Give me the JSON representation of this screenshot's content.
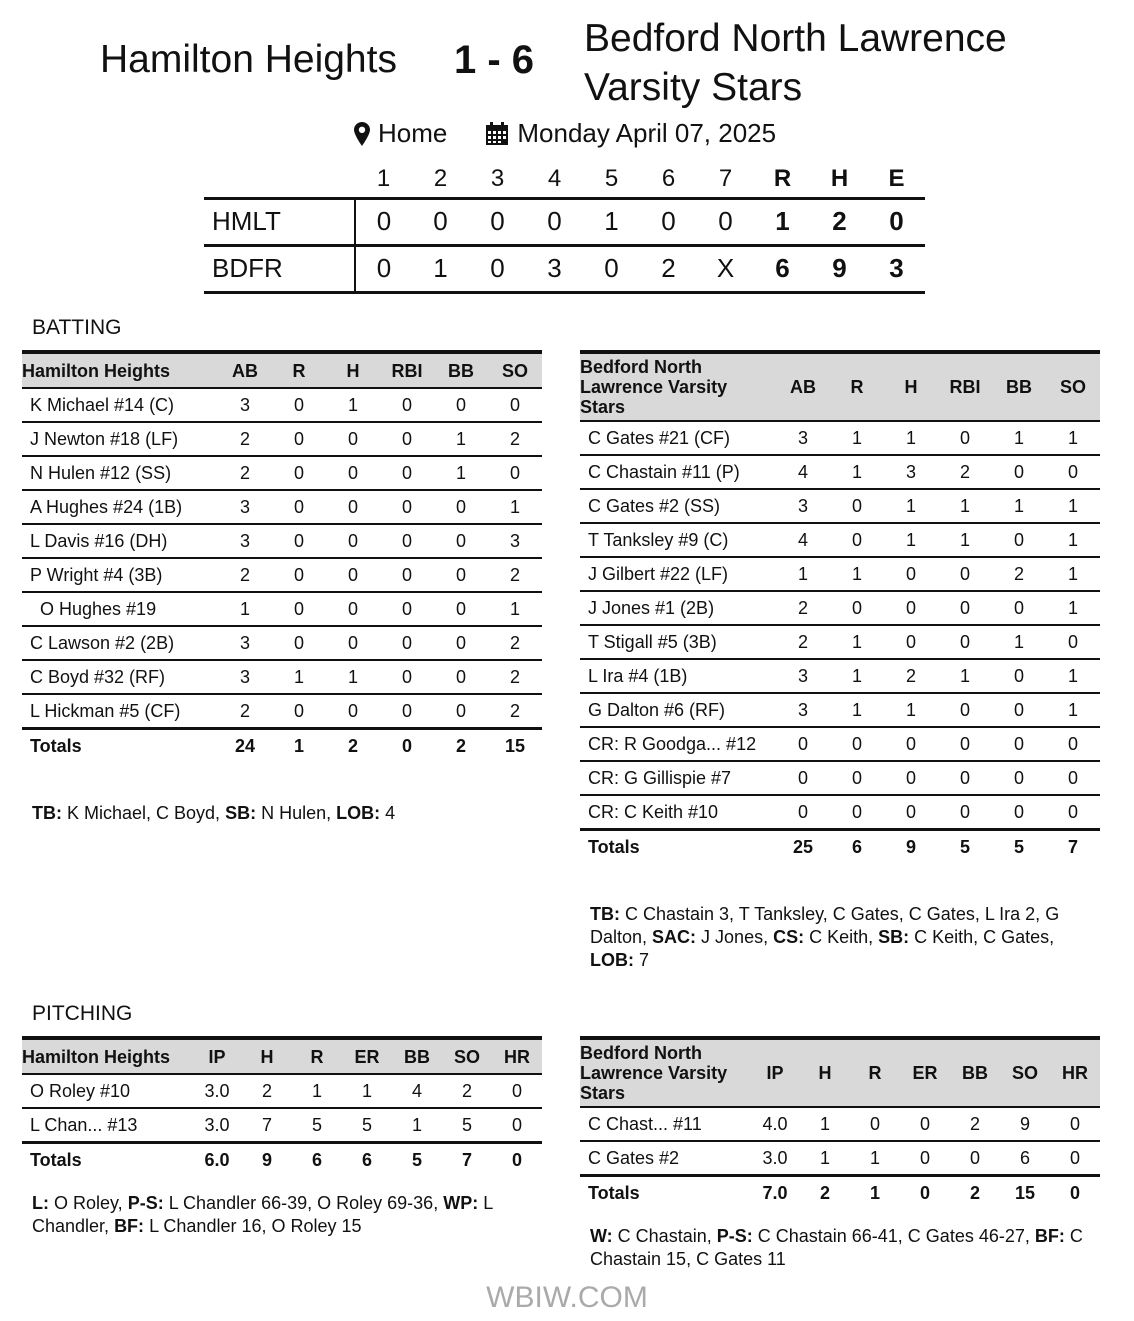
{
  "header": {
    "home_team": "Hamilton Heights",
    "score": "1 - 6",
    "away_team_line1": "Bedford North Lawrence",
    "away_team_line2": "Varsity Stars",
    "location_icon": "map-pin-icon",
    "location": "Home",
    "date_icon": "calendar-icon",
    "date": "Monday April 07, 2025"
  },
  "linescore": {
    "columns": [
      "1",
      "2",
      "3",
      "4",
      "5",
      "6",
      "7",
      "R",
      "H",
      "E"
    ],
    "rows": [
      {
        "team": "HMLT",
        "innings": [
          "0",
          "0",
          "0",
          "0",
          "1",
          "0",
          "0"
        ],
        "rhe": [
          "1",
          "2",
          "0"
        ]
      },
      {
        "team": "BDFR",
        "innings": [
          "0",
          "1",
          "0",
          "3",
          "0",
          "2",
          "X"
        ],
        "rhe": [
          "6",
          "9",
          "3"
        ]
      }
    ]
  },
  "batting": {
    "title": "BATTING",
    "home": {
      "columns": [
        "Hamilton Heights",
        "AB",
        "R",
        "H",
        "RBI",
        "BB",
        "SO"
      ],
      "rows": [
        [
          "K Michael #14 (C)",
          "3",
          "0",
          "1",
          "0",
          "0",
          "0"
        ],
        [
          "J Newton #18 (LF)",
          "2",
          "0",
          "0",
          "0",
          "1",
          "2"
        ],
        [
          "N Hulen #12 (SS)",
          "2",
          "0",
          "0",
          "0",
          "1",
          "0"
        ],
        [
          "A Hughes #24 (1B)",
          "3",
          "0",
          "0",
          "0",
          "0",
          "1"
        ],
        [
          "L Davis #16 (DH)",
          "3",
          "0",
          "0",
          "0",
          "0",
          "3"
        ],
        [
          "P Wright #4 (3B)",
          "2",
          "0",
          "0",
          "0",
          "0",
          "2"
        ],
        [
          "  O Hughes #19",
          "1",
          "0",
          "0",
          "0",
          "0",
          "1"
        ],
        [
          "C Lawson #2 (2B)",
          "3",
          "0",
          "0",
          "0",
          "0",
          "2"
        ],
        [
          "C Boyd #32 (RF)",
          "3",
          "1",
          "1",
          "0",
          "0",
          "2"
        ],
        [
          "L Hickman #5 (CF)",
          "2",
          "0",
          "0",
          "0",
          "0",
          "2"
        ]
      ],
      "totals": [
        "Totals",
        "24",
        "1",
        "2",
        "0",
        "2",
        "15"
      ],
      "notes": [
        [
          "TB:",
          " K Michael, C Boyd, "
        ],
        [
          "SB:",
          " N Hulen, "
        ],
        [
          "LOB:",
          " 4"
        ]
      ]
    },
    "away": {
      "columns": [
        "Bedford North Lawrence Varsity Stars",
        "AB",
        "R",
        "H",
        "RBI",
        "BB",
        "SO"
      ],
      "rows": [
        [
          "C Gates #21 (CF)",
          "3",
          "1",
          "1",
          "0",
          "1",
          "1"
        ],
        [
          "C Chastain #11 (P)",
          "4",
          "1",
          "3",
          "2",
          "0",
          "0"
        ],
        [
          "C Gates #2 (SS)",
          "3",
          "0",
          "1",
          "1",
          "1",
          "1"
        ],
        [
          "T Tanksley #9 (C)",
          "4",
          "0",
          "1",
          "1",
          "0",
          "1"
        ],
        [
          "J Gilbert #22 (LF)",
          "1",
          "1",
          "0",
          "0",
          "2",
          "1"
        ],
        [
          "J Jones #1 (2B)",
          "2",
          "0",
          "0",
          "0",
          "0",
          "1"
        ],
        [
          "T Stigall #5 (3B)",
          "2",
          "1",
          "0",
          "0",
          "1",
          "0"
        ],
        [
          "L Ira #4 (1B)",
          "3",
          "1",
          "2",
          "1",
          "0",
          "1"
        ],
        [
          "G Dalton #6 (RF)",
          "3",
          "1",
          "1",
          "0",
          "0",
          "1"
        ],
        [
          "CR: R Goodga... #12",
          "0",
          "0",
          "0",
          "0",
          "0",
          "0"
        ],
        [
          "CR: G Gillispie #7",
          "0",
          "0",
          "0",
          "0",
          "0",
          "0"
        ],
        [
          "CR: C Keith #10",
          "0",
          "0",
          "0",
          "0",
          "0",
          "0"
        ]
      ],
      "totals": [
        "Totals",
        "25",
        "6",
        "9",
        "5",
        "5",
        "7"
      ],
      "notes": [
        [
          "TB:",
          " C Chastain 3, T Tanksley, C Gates, C Gates, L Ira 2, G Dalton, "
        ],
        [
          "SAC:",
          " J Jones, "
        ],
        [
          "CS:",
          " C Keith, "
        ],
        [
          "SB:",
          " C Keith, C Gates, "
        ],
        [
          "LOB:",
          " 7"
        ]
      ]
    }
  },
  "pitching": {
    "title": "PITCHING",
    "home": {
      "columns": [
        "Hamilton Heights",
        "IP",
        "H",
        "R",
        "ER",
        "BB",
        "SO",
        "HR"
      ],
      "rows": [
        [
          "O Roley #10",
          "3.0",
          "2",
          "1",
          "1",
          "4",
          "2",
          "0"
        ],
        [
          "L Chan... #13",
          "3.0",
          "7",
          "5",
          "5",
          "1",
          "5",
          "0"
        ]
      ],
      "totals": [
        "Totals",
        "6.0",
        "9",
        "6",
        "6",
        "5",
        "7",
        "0"
      ],
      "notes": [
        [
          "L:",
          " O Roley, "
        ],
        [
          "P-S:",
          " L Chandler 66-39, O Roley 69-36, "
        ],
        [
          "WP:",
          " L Chandler, "
        ],
        [
          "BF:",
          " L Chandler 16, O Roley 15"
        ]
      ]
    },
    "away": {
      "columns": [
        "Bedford North Lawrence Varsity Stars",
        "IP",
        "H",
        "R",
        "ER",
        "BB",
        "SO",
        "HR"
      ],
      "rows": [
        [
          "C Chast... #11",
          "4.0",
          "1",
          "0",
          "0",
          "2",
          "9",
          "0"
        ],
        [
          "C Gates #2",
          "3.0",
          "1",
          "1",
          "0",
          "0",
          "6",
          "0"
        ]
      ],
      "totals": [
        "Totals",
        "7.0",
        "2",
        "1",
        "0",
        "2",
        "15",
        "0"
      ],
      "notes": [
        [
          "W:",
          " C Chastain, "
        ],
        [
          "P-S:",
          " C Chastain 66-41, C Gates 46-27, "
        ],
        [
          "BF:",
          " C Chastain 15, C Gates 11"
        ]
      ]
    }
  },
  "watermark": "WBIW.COM"
}
